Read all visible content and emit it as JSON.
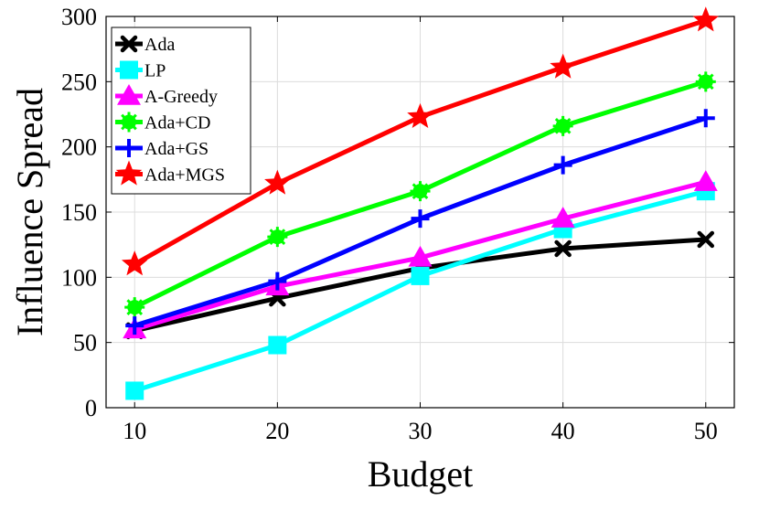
{
  "chart_data": {
    "type": "line",
    "title": "",
    "xlabel": "Budget",
    "ylabel": "Influence Spread",
    "x": [
      10,
      20,
      30,
      40,
      50
    ],
    "xlim": [
      8,
      52
    ],
    "ylim": [
      0,
      300
    ],
    "xticks": [
      "10",
      "20",
      "30",
      "40",
      "50"
    ],
    "yticks": [
      "0",
      "50",
      "100",
      "150",
      "200",
      "250",
      "300"
    ],
    "grid": true,
    "legend_position": "top-left",
    "series": [
      {
        "name": "Ada",
        "color": "#000000",
        "marker": "x",
        "values": [
          59,
          84,
          107,
          122,
          129
        ]
      },
      {
        "name": "LP",
        "color": "#00ffff",
        "marker": "square",
        "values": [
          13,
          48,
          101,
          137,
          166
        ]
      },
      {
        "name": "A-Greedy",
        "color": "#ff00ff",
        "marker": "triangle",
        "values": [
          60,
          93,
          115,
          145,
          173
        ]
      },
      {
        "name": "Ada+CD",
        "color": "#00ff00",
        "marker": "asterisk",
        "values": [
          77,
          131,
          166,
          216,
          250
        ]
      },
      {
        "name": "Ada+GS",
        "color": "#0000ff",
        "marker": "plus",
        "values": [
          63,
          97,
          145,
          186,
          222
        ]
      },
      {
        "name": "Ada+MGS",
        "color": "#ff0000",
        "marker": "star",
        "values": [
          110,
          172,
          223,
          261,
          297
        ]
      }
    ]
  }
}
